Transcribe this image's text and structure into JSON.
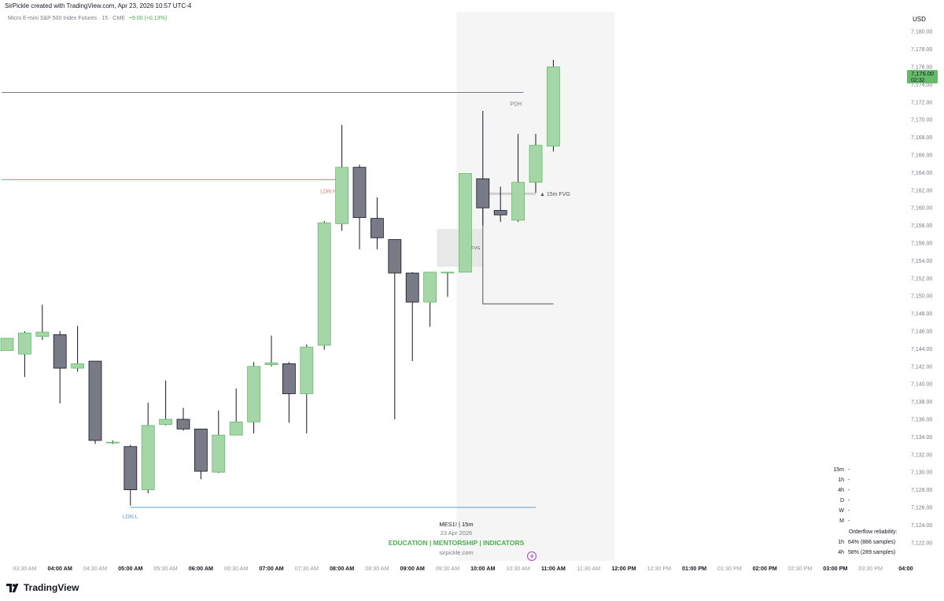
{
  "header": {
    "created_line": "SirPickle created with TradingView.com, Apr 23, 2026 10:57 UTC-4",
    "symbol_desc": "Micro E-mini S&P 500 Index Futures · 15 · CME",
    "change": "+9.00 (+0.13%)"
  },
  "currency": "USD",
  "price_badge": {
    "price": "7,176.00",
    "countdown": "02:32"
  },
  "watermark": {
    "symbol": "MES1! | 15m",
    "date": "23 Apr 2026",
    "tagline": "EDUCATION | MENTORSHIP | INDICATORS",
    "site": "sirpickle.com"
  },
  "brand": {
    "name": "TradingView"
  },
  "reliability_panel": {
    "timeframes": [
      {
        "tf": "15m",
        "value": "-"
      },
      {
        "tf": "1h",
        "value": "-"
      },
      {
        "tf": "4h",
        "value": "-"
      },
      {
        "tf": "D",
        "value": "-"
      },
      {
        "tf": "W",
        "value": "-"
      },
      {
        "tf": "M",
        "value": "-"
      }
    ],
    "title": "Orderflow reliability:",
    "stats": [
      {
        "tf": "1h",
        "value": "64% (886 samples)"
      },
      {
        "tf": "4h",
        "value": "58% (289 samples)"
      }
    ]
  },
  "colors": {
    "up": "#a5d6a7",
    "up_border": "#66bb6a",
    "down": "#787b86",
    "down_border": "#131722",
    "wick": "#131722",
    "session_bg": "#f4f5f4",
    "pdh_line": "#787b86",
    "ldn_h_line": "#e57373",
    "ldn_l_line": "#5b9bd5",
    "fvg_box": "#e8e8e8",
    "tagline": "#4caf50",
    "bolt": "#ab47bc"
  },
  "chart_data": {
    "type": "candlestick",
    "interval": "15m",
    "ylim": [
      7121,
      7182
    ],
    "y_ticks": [
      "7,180.00",
      "7,178.00",
      "7,176.00",
      "7,174.00",
      "7,172.00",
      "7,170.00",
      "7,168.00",
      "7,166.00",
      "7,164.00",
      "7,162.00",
      "7,160.00",
      "7,158.00",
      "7,156.00",
      "7,154.00",
      "7,152.00",
      "7,150.00",
      "7,148.00",
      "7,146.00",
      "7,144.00",
      "7,142.00",
      "7,140.00",
      "7,138.00",
      "7,136.00",
      "7,134.00",
      "7,132.00",
      "7,130.00",
      "7,128.00",
      "7,126.00",
      "7,124.00",
      "7,122.00"
    ],
    "x_labels": [
      {
        "label": "03:30 AM",
        "idx": 1,
        "bold": false
      },
      {
        "label": "04:00 AM",
        "idx": 3,
        "bold": true
      },
      {
        "label": "04:30 AM",
        "idx": 5,
        "bold": false
      },
      {
        "label": "05:00 AM",
        "idx": 7,
        "bold": true
      },
      {
        "label": "05:30 AM",
        "idx": 9,
        "bold": false
      },
      {
        "label": "06:00 AM",
        "idx": 11,
        "bold": true
      },
      {
        "label": "06:30 AM",
        "idx": 13,
        "bold": false
      },
      {
        "label": "07:00 AM",
        "idx": 15,
        "bold": true
      },
      {
        "label": "07:30 AM",
        "idx": 17,
        "bold": false
      },
      {
        "label": "08:00 AM",
        "idx": 19,
        "bold": true
      },
      {
        "label": "08:30 AM",
        "idx": 21,
        "bold": false
      },
      {
        "label": "09:00 AM",
        "idx": 23,
        "bold": true
      },
      {
        "label": "09:30 AM",
        "idx": 25,
        "bold": false
      },
      {
        "label": "10:00 AM",
        "idx": 27,
        "bold": true
      },
      {
        "label": "10:30 AM",
        "idx": 29,
        "bold": false
      },
      {
        "label": "11:00 AM",
        "idx": 31,
        "bold": true
      },
      {
        "label": "11:30 AM",
        "idx": 33,
        "bold": false
      },
      {
        "label": "12:00 PM",
        "idx": 35,
        "bold": true
      },
      {
        "label": "12:30 PM",
        "idx": 37,
        "bold": false
      },
      {
        "label": "01:00 PM",
        "idx": 39,
        "bold": true
      },
      {
        "label": "01:30 PM",
        "idx": 41,
        "bold": false
      },
      {
        "label": "02:00 PM",
        "idx": 43,
        "bold": true
      },
      {
        "label": "02:30 PM",
        "idx": 45,
        "bold": false
      },
      {
        "label": "03:00 PM",
        "idx": 47,
        "bold": true
      },
      {
        "label": "03:30 PM",
        "idx": 49,
        "bold": false
      },
      {
        "label": "04:00",
        "idx": 51,
        "bold": true
      }
    ],
    "candles": [
      {
        "idx": 0,
        "o": 7143.8,
        "h": 7145.2,
        "l": 7143.8,
        "c": 7145.2
      },
      {
        "idx": 1,
        "o": 7143.4,
        "h": 7146.0,
        "l": 7140.8,
        "c": 7145.8
      },
      {
        "idx": 2,
        "o": 7145.4,
        "h": 7149.0,
        "l": 7145.0,
        "c": 7145.9
      },
      {
        "idx": 3,
        "o": 7145.6,
        "h": 7146.0,
        "l": 7137.8,
        "c": 7141.8
      },
      {
        "idx": 4,
        "o": 7141.8,
        "h": 7146.6,
        "l": 7141.4,
        "c": 7142.3
      },
      {
        "idx": 5,
        "o": 7142.6,
        "h": 7142.6,
        "l": 7133.2,
        "c": 7133.6
      },
      {
        "idx": 6,
        "o": 7133.4,
        "h": 7133.6,
        "l": 7133.2,
        "c": 7133.4
      },
      {
        "idx": 7,
        "o": 7132.9,
        "h": 7133.1,
        "l": 7126.2,
        "c": 7128.0
      },
      {
        "idx": 8,
        "o": 7128.0,
        "h": 7137.9,
        "l": 7127.6,
        "c": 7135.3
      },
      {
        "idx": 9,
        "o": 7135.4,
        "h": 7140.4,
        "l": 7135.3,
        "c": 7136.0
      },
      {
        "idx": 10,
        "o": 7136.0,
        "h": 7137.3,
        "l": 7134.7,
        "c": 7134.9
      },
      {
        "idx": 11,
        "o": 7134.9,
        "h": 7134.9,
        "l": 7129.2,
        "c": 7130.1
      },
      {
        "idx": 12,
        "o": 7130.0,
        "h": 7137.0,
        "l": 7129.9,
        "c": 7134.2
      },
      {
        "idx": 13,
        "o": 7134.2,
        "h": 7139.5,
        "l": 7134.2,
        "c": 7135.7
      },
      {
        "idx": 14,
        "o": 7135.7,
        "h": 7142.5,
        "l": 7134.4,
        "c": 7142.0
      },
      {
        "idx": 15,
        "o": 7142.2,
        "h": 7145.5,
        "l": 7142.0,
        "c": 7142.4
      },
      {
        "idx": 16,
        "o": 7142.3,
        "h": 7142.5,
        "l": 7135.6,
        "c": 7138.9
      },
      {
        "idx": 17,
        "o": 7138.9,
        "h": 7144.5,
        "l": 7134.4,
        "c": 7144.2
      },
      {
        "idx": 18,
        "o": 7144.4,
        "h": 7158.5,
        "l": 7143.9,
        "c": 7158.3
      },
      {
        "idx": 19,
        "o": 7158.2,
        "h": 7169.4,
        "l": 7157.4,
        "c": 7164.6
      },
      {
        "idx": 20,
        "o": 7164.6,
        "h": 7164.9,
        "l": 7155.3,
        "c": 7158.9
      },
      {
        "idx": 21,
        "o": 7158.8,
        "h": 7161.2,
        "l": 7155.3,
        "c": 7156.6
      },
      {
        "idx": 22,
        "o": 7156.4,
        "h": 7156.4,
        "l": 7136.0,
        "c": 7152.6
      },
      {
        "idx": 23,
        "o": 7152.6,
        "h": 7152.7,
        "l": 7142.6,
        "c": 7149.3
      },
      {
        "idx": 24,
        "o": 7149.3,
        "h": 7152.7,
        "l": 7146.5,
        "c": 7152.7
      },
      {
        "idx": 25,
        "o": 7152.7,
        "h": 7152.7,
        "l": 7149.9,
        "c": 7152.7
      },
      {
        "idx": 26,
        "o": 7152.7,
        "h": 7163.9,
        "l": 7152.7,
        "c": 7163.9
      },
      {
        "idx": 27,
        "o": 7163.3,
        "h": 7171.0,
        "l": 7158.0,
        "c": 7160.0
      },
      {
        "idx": 28,
        "o": 7159.7,
        "h": 7162.4,
        "l": 7158.4,
        "c": 7159.2
      },
      {
        "idx": 29,
        "o": 7158.6,
        "h": 7168.4,
        "l": 7158.4,
        "c": 7162.9
      },
      {
        "idx": 30,
        "o": 7162.9,
        "h": 7168.4,
        "l": 7161.7,
        "c": 7167.1
      },
      {
        "idx": 31,
        "o": 7167.0,
        "h": 7176.8,
        "l": 7166.4,
        "c": 7176.0
      }
    ],
    "lines": [
      {
        "name": "PDH",
        "price": 7173.1,
        "from_idx": -0.3,
        "to_idx": 29.3,
        "color_key": "pdh_line",
        "label_side": "end"
      },
      {
        "name": "LDN H",
        "price": 7163.2,
        "from_idx": -0.3,
        "to_idx": 18.8,
        "color_key": "ldn_h_line",
        "label_side": "end"
      },
      {
        "name": "LDN L",
        "price": 7126.0,
        "from_idx": 7.0,
        "to_idx": 30.0,
        "color_key": "ldn_l_line",
        "label_side": "start_below"
      }
    ],
    "session_shade": {
      "from_idx": 25.5,
      "to_idx": 34.5
    },
    "fvg_zones": [
      {
        "name": "15m FVG",
        "from_idx": 24.4,
        "to_idx": 27.0,
        "top": 7157.6,
        "bottom": 7153.3
      }
    ],
    "fvg_marker": {
      "name": "▲ 15m FVG",
      "price": 7161.6,
      "from_idx": 27.0,
      "to_idx": 30.0,
      "bracket_low": 7149.1,
      "bracket_to_idx": 31.0
    }
  }
}
